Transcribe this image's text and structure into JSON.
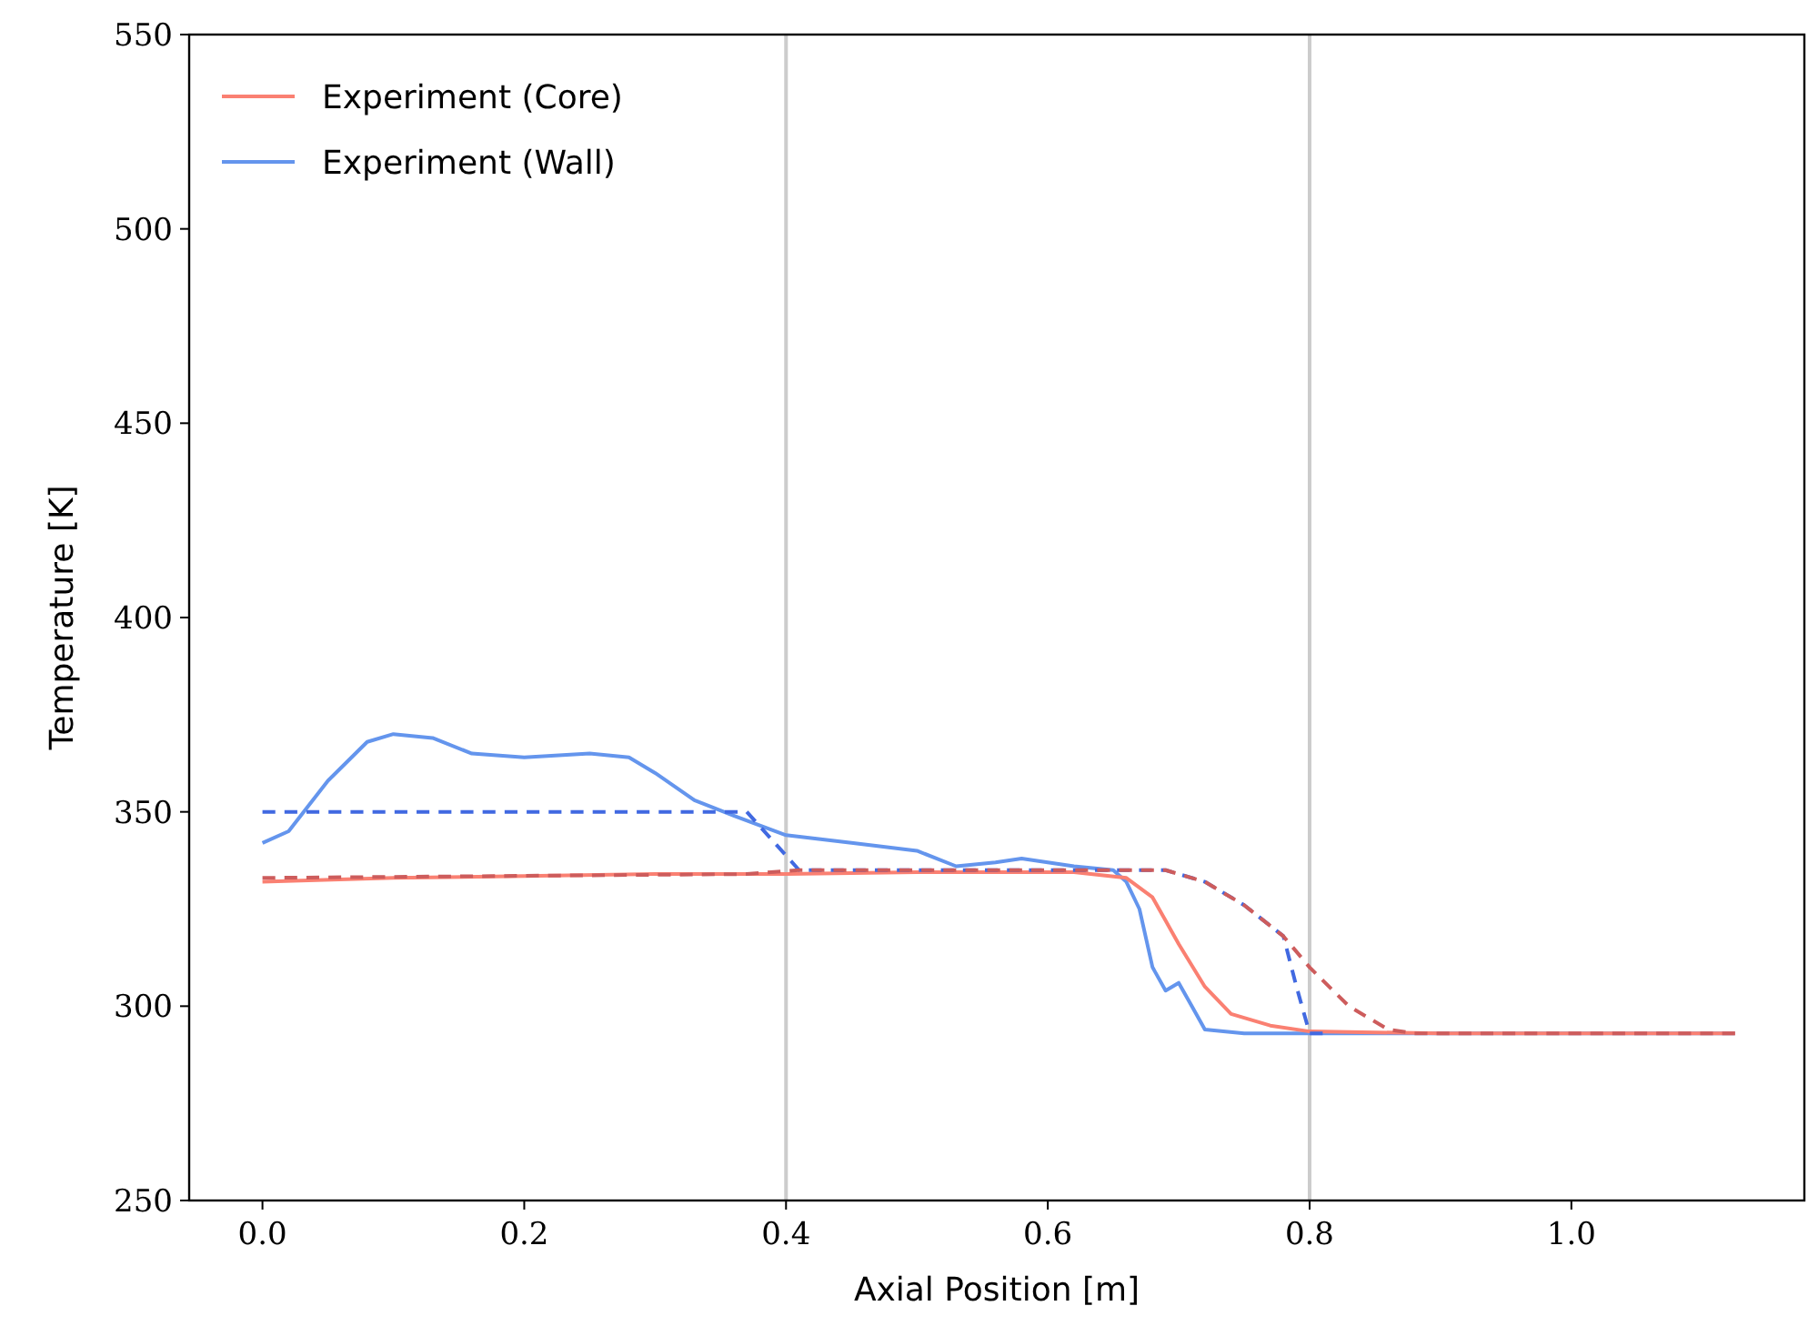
{
  "chart_data": {
    "type": "line",
    "xlabel": "Axial Position [m]",
    "ylabel": "Temperature [K]",
    "xlim": [
      -0.056,
      1.178
    ],
    "ylim": [
      250,
      550
    ],
    "xticks": [
      {
        "value": 0,
        "label": "0.0"
      },
      {
        "value": 0.2,
        "label": "0.2"
      },
      {
        "value": 0.4,
        "label": "0.4"
      },
      {
        "value": 0.6,
        "label": "0.6"
      },
      {
        "value": 0.8,
        "label": "0.8"
      },
      {
        "value": 1,
        "label": "1.0"
      }
    ],
    "yticks": [
      250,
      300,
      350,
      400,
      450,
      500,
      550
    ],
    "grid": false,
    "legend": "top left",
    "ref_lines": [
      {
        "axis": "x",
        "value": 0.4,
        "color": "#cccccc"
      },
      {
        "axis": "x",
        "value": 0.8,
        "color": "#cccccc"
      }
    ],
    "series": [
      {
        "color": "#cd5c5c",
        "line_style": "dashed",
        "x": [
          0,
          0.37,
          0.41,
          0.69,
          0.72,
          0.75,
          0.78,
          0.8,
          0.83,
          0.86,
          0.88,
          1.125
        ],
        "values": [
          333,
          334,
          335,
          335,
          332,
          326,
          318,
          310,
          300,
          294,
          293,
          293
        ]
      },
      {
        "color": "#4169e1",
        "line_style": "dashed",
        "x": [
          0,
          0.37,
          0.41,
          0.69,
          0.72,
          0.75,
          0.78,
          0.79,
          0.8,
          0.81
        ],
        "values": [
          350,
          350,
          335,
          335,
          332,
          326,
          318,
          305,
          293,
          293
        ]
      },
      {
        "name": "Experiment (Core)",
        "color": "#fa8072",
        "line_style": "solid",
        "x": [
          0,
          0.1,
          0.2,
          0.3,
          0.4,
          0.5,
          0.62,
          0.66,
          0.68,
          0.69,
          0.7,
          0.72,
          0.74,
          0.77,
          0.8,
          0.9,
          1,
          1.125
        ],
        "values": [
          332,
          333,
          333.5,
          334,
          334,
          334.5,
          334.5,
          333,
          328,
          322,
          316,
          305,
          298,
          295,
          293.5,
          293,
          293,
          293
        ]
      },
      {
        "name": "Experiment (Wall)",
        "color": "#6495ed",
        "line_style": "solid",
        "x": [
          0,
          0.02,
          0.05,
          0.08,
          0.1,
          0.13,
          0.16,
          0.2,
          0.25,
          0.28,
          0.3,
          0.33,
          0.36,
          0.4,
          0.45,
          0.5,
          0.53,
          0.56,
          0.58,
          0.62,
          0.65,
          0.66,
          0.67,
          0.68,
          0.69,
          0.7,
          0.71,
          0.72,
          0.75,
          0.8,
          0.9,
          1,
          1.125
        ],
        "values": [
          342,
          345,
          358,
          368,
          370,
          369,
          365,
          364,
          365,
          364,
          360,
          353,
          349,
          344,
          342,
          340,
          336,
          337,
          338,
          336,
          335,
          332,
          325,
          310,
          304,
          306,
          300,
          294,
          293,
          293,
          293,
          293,
          293
        ]
      }
    ]
  }
}
